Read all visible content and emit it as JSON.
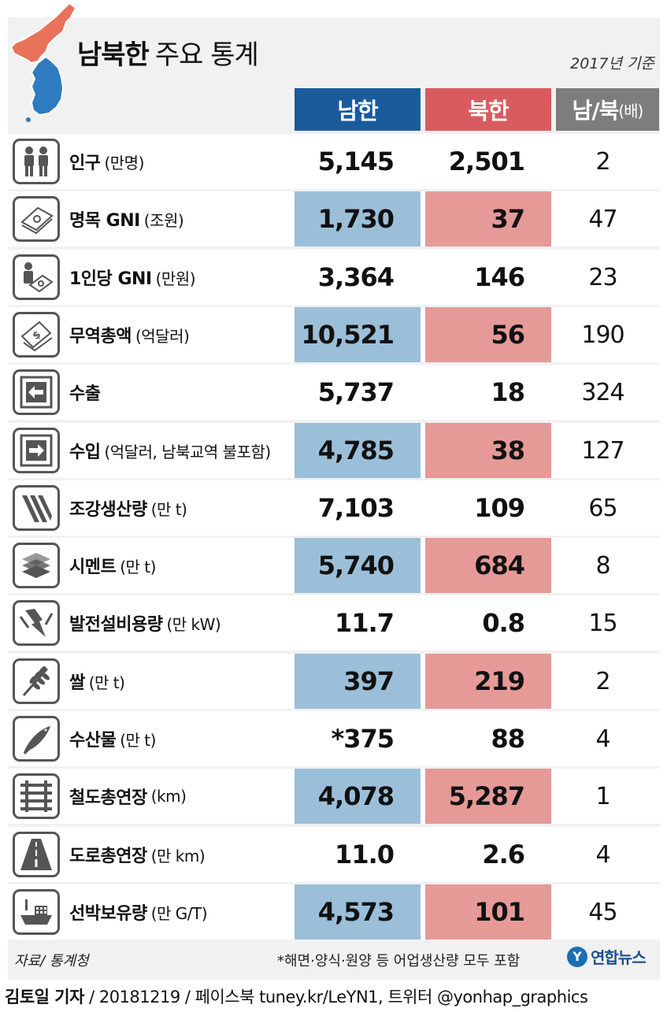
{
  "title_bold": "남북한",
  "title_light": "주요 통계",
  "basis": "2017년 기준",
  "headers": {
    "south": "남한",
    "north": "북한",
    "ratio": "남/북",
    "ratio_unit": "(배)"
  },
  "rows": [
    {
      "icon": "people-icon",
      "name": "인구",
      "unit": "(만명)",
      "south": "5,145",
      "north": "2,501",
      "ratio": "2",
      "shaded": false
    },
    {
      "icon": "banknotes-icon",
      "name": "명목 GNI",
      "unit": "(조원)",
      "south": "1,730",
      "north": "37",
      "ratio": "47",
      "shaded": true
    },
    {
      "icon": "person-money-icon",
      "name": "1인당 GNI",
      "unit": "(만원)",
      "south": "3,364",
      "north": "146",
      "ratio": "23",
      "shaded": false
    },
    {
      "icon": "dollar-bills-icon",
      "name": "무역총액",
      "unit": "(억달러)",
      "south": "10,521",
      "north": "56",
      "ratio": "190",
      "shaded": true
    },
    {
      "icon": "export-arrow-icon",
      "name": "수출",
      "unit": "",
      "south": "5,737",
      "north": "18",
      "ratio": "324",
      "shaded": false
    },
    {
      "icon": "import-arrow-icon",
      "name": "수입",
      "unit": "(억달러, 남북교역 불포함)",
      "south": "4,785",
      "north": "38",
      "ratio": "127",
      "shaded": true
    },
    {
      "icon": "steel-beams-icon",
      "name": "조강생산량",
      "unit": "(만 t)",
      "south": "7,103",
      "north": "109",
      "ratio": "65",
      "shaded": false
    },
    {
      "icon": "cement-layers-icon",
      "name": "시멘트",
      "unit": "(만 t)",
      "south": "5,740",
      "north": "684",
      "ratio": "8",
      "shaded": true
    },
    {
      "icon": "lightning-icon",
      "name": "발전설비용량",
      "unit": "(만 kW)",
      "south": "11.7",
      "north": "0.8",
      "ratio": "15",
      "shaded": false
    },
    {
      "icon": "rice-plant-icon",
      "name": "쌀",
      "unit": "(만 t)",
      "south": "397",
      "north": "219",
      "ratio": "2",
      "shaded": true
    },
    {
      "icon": "fish-icon",
      "name": "수산물",
      "unit": "(만 t)",
      "south": "*375",
      "north": "88",
      "ratio": "4",
      "shaded": false
    },
    {
      "icon": "railway-icon",
      "name": "철도총연장",
      "unit": "(km)",
      "south": "4,078",
      "north": "5,287",
      "ratio": "1",
      "shaded": true
    },
    {
      "icon": "road-icon",
      "name": "도로총연장",
      "unit": "(만 km)",
      "south": "11.0",
      "north": "2.6",
      "ratio": "4",
      "shaded": false
    },
    {
      "icon": "ship-icon",
      "name": "선박보유량",
      "unit": "(만 G/T)",
      "south": "4,573",
      "north": "101",
      "ratio": "45",
      "shaded": true
    }
  ],
  "source": "자료/ 통계청",
  "footnote": "*해면·양식·원양 등 어업생산량 모두 포함",
  "logo_text": "연합뉴스",
  "credit": {
    "reporter": "김토일 기자",
    "details": " / 20181219 / 페이스북 tuney.kr/LeYN1, 트위터 @yonhap_graphics"
  },
  "colors": {
    "south_header": "#1a5b9c",
    "north_header": "#d95b60",
    "ratio_header": "#7d7d7d",
    "south_shade": "#9bbfd9",
    "north_shade": "#e59a98",
    "map_north": "#e8725a",
    "map_south": "#2f7bbf"
  }
}
